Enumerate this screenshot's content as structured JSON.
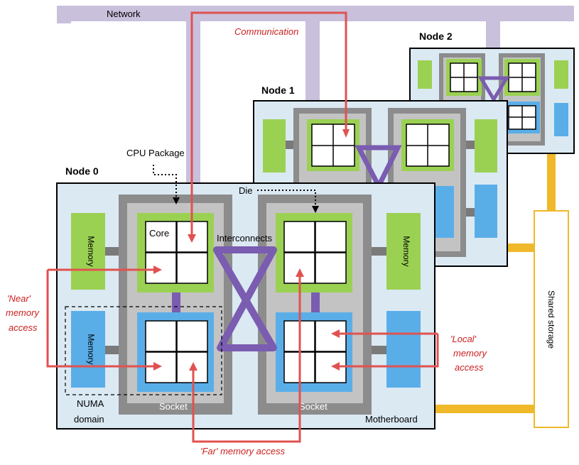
{
  "labels": {
    "network": "Network",
    "communication": "Communication",
    "node0": "Node 0",
    "node1": "Node 1",
    "node2": "Node 2",
    "cpu_package": "CPU Package",
    "die": "Die",
    "core": "Core",
    "interconnects": "Interconnects",
    "memory": "Memory",
    "near_line1": "'Near'",
    "near_line2": "memory",
    "near_line3": "access",
    "local_line1": "'Local'",
    "local_line2": "memory",
    "local_line3": "access",
    "far": "'Far' memory access",
    "numa_line1": "NUMA",
    "numa_line2": "domain",
    "socket": "Socket",
    "motherboard": "Motherboard",
    "shared_storage": "Shared storage"
  },
  "colors": {
    "network": "#c9c0dc",
    "node_fill": "#dbe9f3",
    "socket_fill": "#8c8c8c",
    "socket_inner": "#c3c3c3",
    "green": "#9bd153",
    "blue": "#5aaee8",
    "purple": "#7a5cb0",
    "red": "#e0524f",
    "red_text": "#cc1f1f",
    "storage": "#f0b92a",
    "grey_link": "#7a7a7a"
  }
}
